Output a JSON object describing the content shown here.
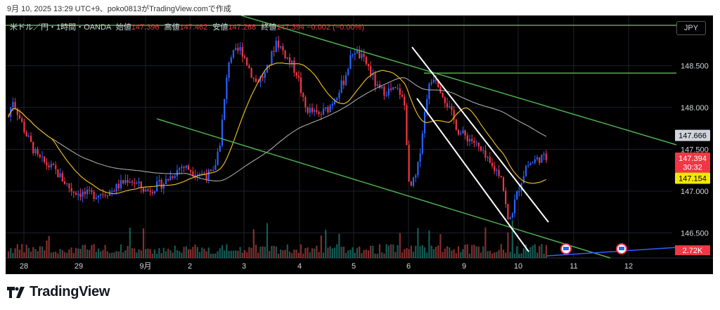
{
  "snapshot_header": "9月 10, 2025 13:29 UTC+9、poko0813がTradingView.comで作成",
  "legend": {
    "symbol": "米ドル／円・1時間・OANDA",
    "open_label": "始値",
    "open": "147.396",
    "high_label": "高値",
    "high": "147.462",
    "low_label": "安値",
    "low": "147.268",
    "close_label": "終値",
    "close": "147.394",
    "change": "−0.002 (−0.00%)"
  },
  "currency_button": "JPY",
  "brand": "TradingView",
  "chart_data": {
    "type": "candlestick",
    "x_ticks": [
      "28",
      "29",
      "9月",
      "2",
      "3",
      "4",
      "5",
      "6",
      "9",
      "10",
      "11",
      "12"
    ],
    "y_ticks": [
      "148.500",
      "148.000",
      "147.500",
      "147.000",
      "146.500"
    ],
    "ylim": [
      146.2,
      149.1
    ],
    "price_badges": [
      {
        "label": "147.666",
        "value": 147.666,
        "kind": "ma-long",
        "color": "#d1d4dc",
        "text_color": "#000000"
      },
      {
        "label": "147.394",
        "value": 147.394,
        "kind": "last-price",
        "color": "#f23645",
        "text_color": "#ffffff"
      },
      {
        "label": "30:32",
        "value": 147.29,
        "kind": "countdown",
        "color": "#f23645",
        "text_color": "#ffffff"
      },
      {
        "label": "147.154",
        "value": 147.154,
        "kind": "ma-short",
        "color": "#f5e600",
        "text_color": "#000000"
      }
    ],
    "volume_badge": "2.72K",
    "colors": {
      "up": "#2962ff",
      "down": "#f23645",
      "ma_short": "#e6b422",
      "ma_long": "#b8b8b8",
      "trendline": "#4caf50",
      "channel": "#ffffff",
      "vol_up": "#26a69a",
      "vol_down": "#ef5350"
    },
    "grid": true
  }
}
